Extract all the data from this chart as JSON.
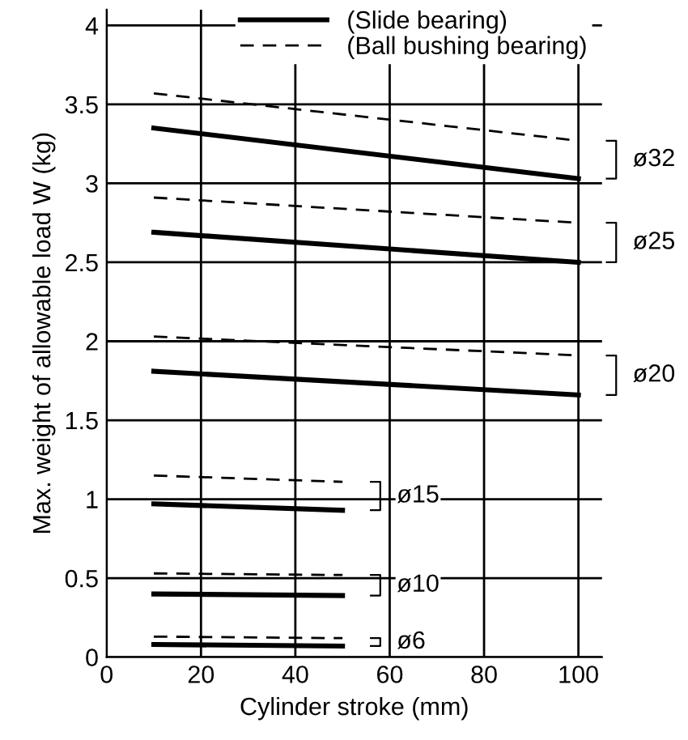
{
  "chart_data": {
    "type": "line",
    "xlabel": "Cylinder stroke (mm)",
    "ylabel": "Max. weight of allowable load W (kg)",
    "xlim": [
      0,
      105
    ],
    "xticks": [
      0,
      20,
      40,
      60,
      80,
      100
    ],
    "ylim": [
      0,
      4.1
    ],
    "yticks": [
      0,
      0.5,
      1,
      1.5,
      2,
      2.5,
      3,
      3.5,
      4
    ],
    "grid": true,
    "legend": "top",
    "marker": "none",
    "series": [
      {
        "name": "(Slide bearing)",
        "color": "#000000",
        "line_style": "solid",
        "x": [
          10,
          100
        ],
        "values": [
          3.35,
          3.03
        ]
      },
      {
        "name": "(Ball bushing bearing)",
        "color": "#000000",
        "line_style": "dashed",
        "x": [
          10,
          100
        ],
        "values": [
          3.57,
          3.27
        ]
      },
      {
        "color": "#000000",
        "line_style": "solid",
        "x": [
          10,
          100
        ],
        "values": [
          2.69,
          2.5
        ]
      },
      {
        "color": "#000000",
        "line_style": "dashed",
        "x": [
          10,
          100
        ],
        "values": [
          2.91,
          2.75
        ]
      },
      {
        "color": "#000000",
        "line_style": "solid",
        "x": [
          10,
          100
        ],
        "values": [
          1.81,
          1.66
        ]
      },
      {
        "color": "#000000",
        "line_style": "dashed",
        "x": [
          10,
          100
        ],
        "values": [
          2.03,
          1.91
        ]
      },
      {
        "color": "#000000",
        "line_style": "solid",
        "x": [
          10,
          50
        ],
        "values": [
          0.97,
          0.93
        ]
      },
      {
        "color": "#000000",
        "line_style": "dashed",
        "x": [
          10,
          50
        ],
        "values": [
          1.15,
          1.11
        ]
      },
      {
        "color": "#000000",
        "line_style": "solid",
        "x": [
          10,
          50
        ],
        "values": [
          0.4,
          0.39
        ]
      },
      {
        "color": "#000000",
        "line_style": "dashed",
        "x": [
          10,
          50
        ],
        "values": [
          0.53,
          0.52
        ]
      },
      {
        "color": "#000000",
        "line_style": "solid",
        "x": [
          10,
          50
        ],
        "values": [
          0.08,
          0.07
        ]
      },
      {
        "color": "#000000",
        "line_style": "dashed",
        "x": [
          10,
          50
        ],
        "values": [
          0.13,
          0.12
        ]
      }
    ],
    "annotations": [
      "ø32",
      "ø25",
      "ø20",
      "ø15",
      "ø10",
      "ø6"
    ]
  }
}
